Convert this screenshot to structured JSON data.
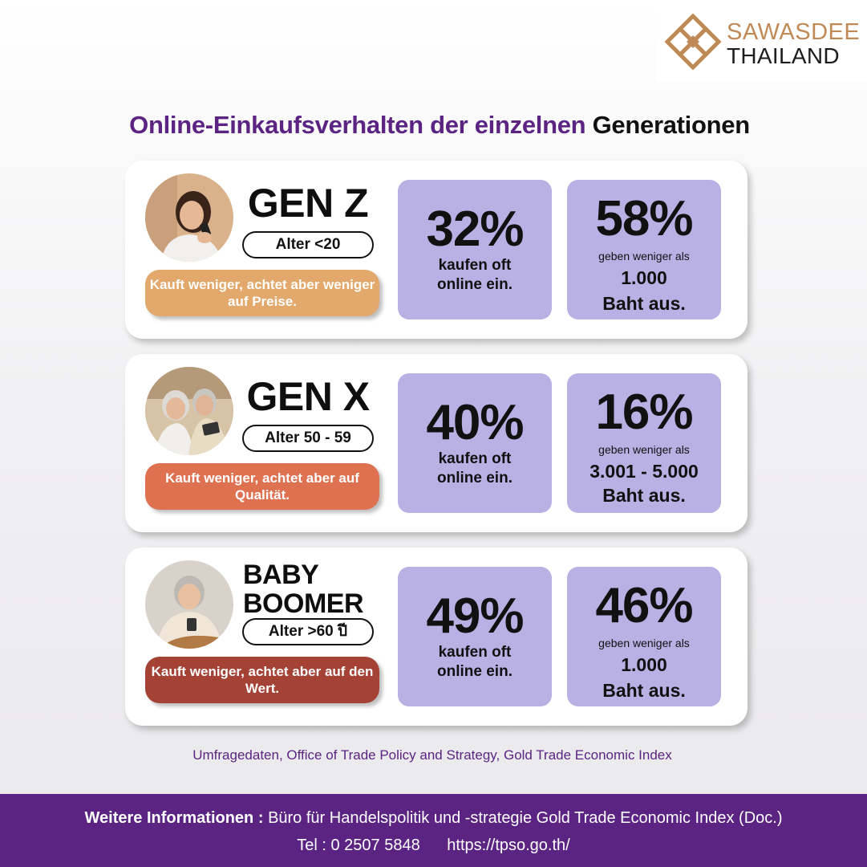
{
  "logo": {
    "line1": "SAWASDEE",
    "line2": "THAILAND",
    "icon": "diamond-logo-icon",
    "color": "#c08a56"
  },
  "headline": {
    "part1": "Online-Einkaufsverhalten der einzelnen",
    "part2": "Generationen"
  },
  "generations": [
    {
      "title": "GEN Z",
      "age": "Alter <20",
      "note": "Kauft weniger, achtet aber weniger auf Preise.",
      "note_color": "#e3a86c",
      "stat1": {
        "value": "32%",
        "desc": "kaufen oft online ein."
      },
      "stat2": {
        "value": "58%",
        "desc": "geben weniger als",
        "amount": "1.000",
        "suffix": "Baht aus."
      }
    },
    {
      "title": "GEN X",
      "age": "Alter 50 - 59",
      "note": "Kauft weniger, achtet aber auf Qualität.",
      "note_color": "#de7150",
      "stat1": {
        "value": "40%",
        "desc": "kaufen oft online ein."
      },
      "stat2": {
        "value": "16%",
        "desc": "geben weniger als",
        "amount": "3.001 - 5.000",
        "suffix": "Baht aus."
      }
    },
    {
      "title": "BABY BOOMER",
      "age": "Alter >60 ปี",
      "note": "Kauft weniger, achtet aber auf den Wert.",
      "note_color": "#a44236",
      "stat1": {
        "value": "49%",
        "desc": "kaufen oft online ein."
      },
      "stat2": {
        "value": "46%",
        "desc": "geben weniger als",
        "amount": "1.000",
        "suffix": "Baht aus."
      }
    }
  ],
  "source": "Umfragedaten, Office of Trade Policy and Strategy, Gold Trade Economic Index",
  "footer": {
    "label": "Weitere Informationen :",
    "text": "Büro für Handelspolitik und -strategie Gold Trade Economic Index (Doc.)",
    "tel": "Tel : 0 2507 5848",
    "url": "https://tpso.go.th/"
  },
  "colors": {
    "brand_purple": "#5b2483",
    "stat_box": "#b9b0e4"
  }
}
